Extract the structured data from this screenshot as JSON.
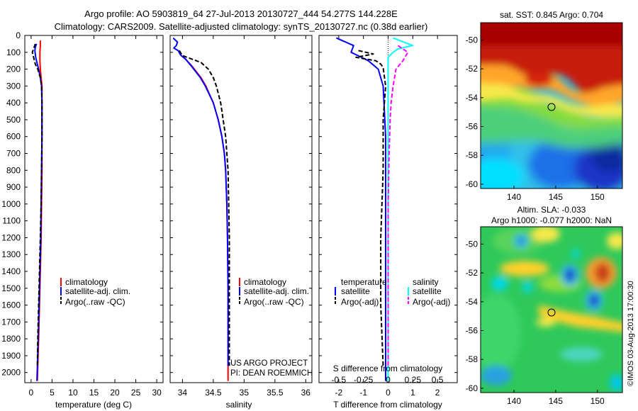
{
  "header": {
    "line1": "Argo profile: AO 5903819_64 27-Jul-2013 20130727_444 54.277S 144.228E",
    "line2": "Climatology: CARS2009. Satellite-adjusted climatology: synTS_20130727.nc (0.38d earlier)"
  },
  "colors": {
    "climatology": "#ff0000",
    "satellite": "#0000ff",
    "argo": "#000000",
    "sal_satellite": "#00ffff",
    "sal_argo": "#ff00ff"
  },
  "depth_axis": {
    "ticks": [
      "0",
      "100",
      "200",
      "300",
      "400",
      "500",
      "600",
      "700",
      "800",
      "900",
      "1000",
      "1100",
      "1200",
      "1300",
      "1400",
      "1500",
      "1600",
      "1700",
      "1800",
      "1900",
      "2000"
    ],
    "range": [
      0,
      2060
    ]
  },
  "chart_data": [
    {
      "type": "line",
      "xlabel": "temperature (deg C)",
      "xlim": [
        -1.5,
        31.5
      ],
      "xticks": [
        "0",
        "5",
        "10",
        "15",
        "20",
        "25",
        "30"
      ],
      "ylim": [
        0,
        2060
      ],
      "legend": [
        "climatology",
        "satellite-adj. clim.",
        "Argo(..raw -QC)"
      ],
      "series": [
        {
          "name": "climatology",
          "depth": [
            30,
            60,
            100,
            150,
            200,
            250,
            300,
            400,
            600,
            800,
            1000,
            1200,
            1400,
            1600,
            1800,
            2050
          ],
          "values": [
            2.2,
            2.2,
            2.1,
            2.1,
            2.2,
            2.4,
            2.6,
            2.6,
            2.6,
            2.6,
            2.5,
            2.4,
            2.2,
            2.0,
            1.8,
            1.5
          ]
        },
        {
          "name": "satellite-adj. clim.",
          "depth": [
            50,
            70,
            90,
            110,
            130,
            150,
            200,
            250,
            300,
            400,
            600,
            800,
            1000,
            1200,
            1400,
            1600,
            1800,
            2050
          ],
          "values": [
            1.3,
            1.0,
            0.9,
            1.0,
            1.1,
            1.3,
            1.8,
            2.2,
            2.5,
            2.6,
            2.6,
            2.5,
            2.4,
            2.3,
            2.1,
            1.9,
            1.7,
            1.4
          ]
        },
        {
          "name": "Argo(..raw -QC)",
          "depth": [
            50,
            80,
            100,
            120,
            150,
            170,
            200,
            250,
            300,
            400,
            600,
            800,
            1000,
            1200,
            1400,
            1600,
            1800,
            1960
          ],
          "values": [
            1.0,
            0.6,
            0.3,
            0.5,
            0.8,
            1.0,
            1.6,
            2.2,
            2.5,
            2.6,
            2.6,
            2.5,
            2.4,
            2.2,
            2.0,
            1.8,
            1.6,
            1.5
          ]
        }
      ]
    },
    {
      "type": "line",
      "xlabel": "salinity",
      "xlim": [
        33.8,
        36.1
      ],
      "xticks": [
        "34",
        "34.5",
        "35",
        "35.5",
        "36"
      ],
      "ylim": [
        0,
        2060
      ],
      "legend": [
        "climatology",
        "satellite-adj. clim.",
        "Argo(..raw -QC)"
      ],
      "annotations": [
        "US ARGO PROJECT",
        "PI: DEAN ROEMMICH"
      ],
      "series": [
        {
          "name": "climatology",
          "depth": [
            120,
            140,
            180,
            250,
            300,
            400,
            500,
            600,
            700,
            800,
            1000,
            1200,
            1500,
            2050
          ],
          "values": [
            33.98,
            34.05,
            34.15,
            34.3,
            34.38,
            34.5,
            34.58,
            34.64,
            34.68,
            34.7,
            34.72,
            34.73,
            34.74,
            34.74
          ]
        },
        {
          "name": "satellite-adj. clim.",
          "depth": [
            15,
            40,
            60,
            75,
            90,
            110,
            120,
            140,
            180,
            250,
            300,
            400,
            500,
            600,
            700,
            800,
            1000,
            1200,
            1500,
            1960
          ],
          "values": [
            33.85,
            33.92,
            33.9,
            33.86,
            33.93,
            33.96,
            33.98,
            34.05,
            34.14,
            34.29,
            34.37,
            34.5,
            34.58,
            34.64,
            34.68,
            34.7,
            34.72,
            34.73,
            34.74,
            34.74
          ]
        },
        {
          "name": "Argo(..raw -QC)",
          "depth": [
            90,
            120,
            140,
            160,
            200,
            250,
            300,
            400,
            500,
            600,
            700,
            800,
            1000,
            1200,
            1500,
            1960
          ],
          "values": [
            33.95,
            34.0,
            34.15,
            34.3,
            34.42,
            34.5,
            34.55,
            34.62,
            34.66,
            34.7,
            34.72,
            34.74,
            34.75,
            34.76,
            34.76,
            34.76
          ]
        }
      ]
    },
    {
      "type": "line",
      "xlabel": "T difference from climatology",
      "xlabel2": "S difference from climatology",
      "xlim": [
        -2.8,
        2.8
      ],
      "xticks": [
        "-2",
        "-1",
        "0",
        "1",
        "2"
      ],
      "xticks2": [
        "-0.5",
        "-0.25",
        "0",
        "0.25",
        "0.5"
      ],
      "ylim": [
        0,
        2060
      ],
      "legend_temperature": "temperature",
      "legend_salinity": "salinity",
      "legend_items": [
        "satellite",
        "Argo(-adj)",
        "satellite",
        "Argo(-adj)"
      ],
      "series": [
        {
          "name": "temperature satellite",
          "depth": [
            15,
            60,
            100,
            150,
            200,
            300,
            600,
            1000,
            1500,
            2050
          ],
          "values": [
            -2.1,
            -1.4,
            -1.5,
            -0.8,
            -0.4,
            -0.2,
            -0.1,
            -0.1,
            -0.1,
            -0.1
          ]
        },
        {
          "name": "temperature Argo(-adj)",
          "depth": [
            90,
            110,
            130,
            150,
            170,
            190,
            300,
            500,
            800,
            1200,
            1600,
            1960
          ],
          "values": [
            -1.2,
            -0.6,
            -1.3,
            -0.5,
            -0.3,
            -0.2,
            -0.1,
            -0.2,
            -0.2,
            -0.3,
            -0.3,
            -0.2
          ]
        },
        {
          "name": "salinity satellite",
          "depth": [
            15,
            60,
            80,
            100,
            130,
            160,
            200,
            300,
            600,
            1000,
            2050
          ],
          "values": [
            0.05,
            0.25,
            0.1,
            0.05,
            0.0,
            0.0,
            0.0,
            0.0,
            0.0,
            0.0,
            0.0
          ]
        },
        {
          "name": "salinity Argo(-adj)",
          "depth": [
            60,
            100,
            150,
            200,
            300,
            400,
            500,
            700,
            1000,
            1200,
            1600,
            1960
          ],
          "values": [
            0.1,
            0.2,
            0.15,
            0.08,
            0.05,
            0.03,
            0.02,
            0.01,
            0.0,
            0.0,
            0.0,
            0.0
          ]
        }
      ]
    },
    {
      "type": "heatmap",
      "title": "sat. SST: 0.845 Argo: 0.704",
      "xticks": [
        "140",
        "145",
        "150"
      ],
      "yticks": [
        "-50",
        "-52",
        "-54",
        "-56",
        "-58",
        "-60"
      ],
      "xlim": [
        136,
        153
      ],
      "ylim": [
        -60.3,
        -48.8
      ],
      "marker": {
        "lon": 144.2,
        "lat": -54.3
      }
    },
    {
      "type": "heatmap",
      "title1": "Altim. SLA: -0.033",
      "title2": "Argo h1000: -0.077 h2000: NaN",
      "xticks": [
        "140",
        "145",
        "150"
      ],
      "yticks": [
        "-50",
        "-52",
        "-54",
        "-56",
        "-58",
        "-60"
      ],
      "xlim": [
        136,
        153
      ],
      "ylim": [
        -60.3,
        -48.8
      ],
      "marker": {
        "lon": 144.2,
        "lat": -54.3
      },
      "side_label": "©IMOS 03-Aug-2013 17:00:30"
    }
  ]
}
